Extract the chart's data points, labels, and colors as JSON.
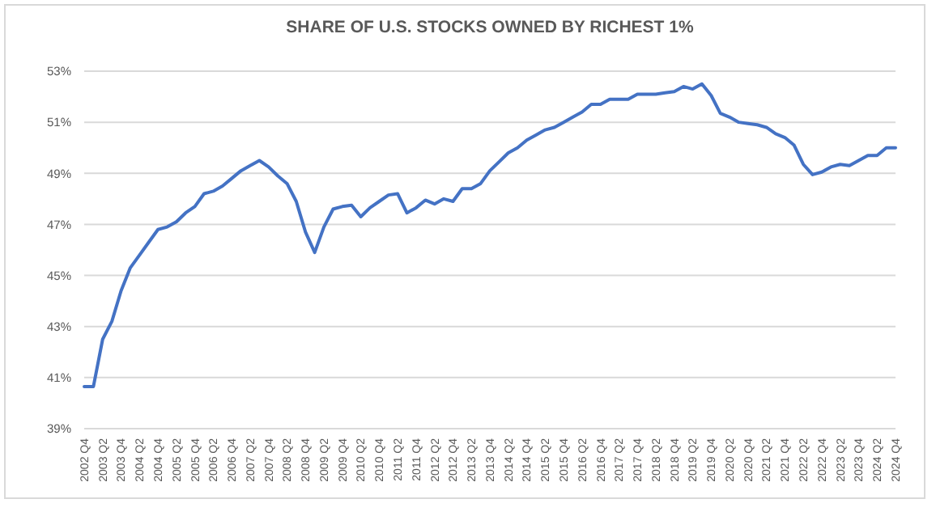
{
  "chart_data": {
    "type": "line",
    "title": "SHARE OF U.S. STOCKS OWNED BY RICHEST 1%",
    "categories": [
      "2002 Q4",
      null,
      "2003 Q2",
      null,
      "2003 Q4",
      null,
      "2004 Q2",
      null,
      "2004 Q4",
      null,
      "2005 Q2",
      null,
      "2005 Q4",
      null,
      "2006 Q2",
      null,
      "2006 Q4",
      null,
      "2007 Q2",
      null,
      "2007 Q4",
      null,
      "2008 Q2",
      null,
      "2008 Q4",
      null,
      "2009 Q2",
      null,
      "2009 Q4",
      null,
      "2010 Q2",
      null,
      "2010 Q4",
      null,
      "2011 Q2",
      null,
      "2011 Q4",
      null,
      "2012 Q2",
      null,
      "2012 Q4",
      null,
      "2013 Q2",
      null,
      "2013 Q4",
      null,
      "2014 Q2",
      null,
      "2014 Q4",
      null,
      "2015 Q2",
      null,
      "2015 Q4",
      null,
      "2016 Q2",
      null,
      "2016 Q4",
      null,
      "2017 Q2",
      null,
      "2017 Q4",
      null,
      "2018 Q2",
      null,
      "2018 Q4",
      null,
      "2019 Q2",
      null,
      "2019 Q4",
      null,
      "2020 Q2",
      null,
      "2020 Q4",
      null,
      "2021 Q2",
      null,
      "2021 Q4",
      null,
      "2022 Q2",
      null,
      "2022 Q4",
      null,
      "2023 Q2",
      null,
      "2023 Q4",
      null,
      "2024 Q2",
      null,
      "2024 Q4"
    ],
    "series": [
      {
        "color": "#4472c4",
        "values": [
          40.65,
          40.65,
          42.5,
          43.2,
          44.4,
          45.3,
          45.8,
          46.3,
          46.8,
          46.9,
          47.1,
          47.45,
          47.7,
          48.2,
          48.3,
          48.5,
          48.8,
          49.1,
          49.3,
          49.5,
          49.25,
          48.9,
          48.6,
          47.9,
          46.7,
          45.9,
          46.9,
          47.6,
          47.7,
          47.75,
          47.3,
          47.65,
          47.9,
          48.15,
          48.2,
          47.45,
          47.65,
          47.95,
          47.8,
          48.0,
          47.9,
          48.4,
          48.4,
          48.6,
          49.1,
          49.45,
          49.8,
          50.0,
          50.3,
          50.5,
          50.7,
          50.8,
          51.0,
          51.2,
          51.4,
          51.7,
          51.7,
          51.9,
          51.9,
          51.9,
          52.1,
          52.1,
          52.1,
          52.15,
          52.2,
          52.4,
          52.3,
          52.5,
          52.05,
          51.35,
          51.2,
          51.0,
          50.95,
          50.9,
          50.8,
          50.55,
          50.4,
          50.1,
          49.35,
          48.95,
          49.05,
          49.25,
          49.35,
          49.3,
          49.5,
          49.7,
          49.7,
          50.0,
          50.0
        ]
      }
    ],
    "ylim": [
      39,
      53
    ],
    "yticks": [
      {
        "value": 39,
        "label": "39%"
      },
      {
        "value": 41,
        "label": "41%"
      },
      {
        "value": 43,
        "label": "43%"
      },
      {
        "value": 45,
        "label": "45%"
      },
      {
        "value": 47,
        "label": "47%"
      },
      {
        "value": 49,
        "label": "49%"
      },
      {
        "value": 51,
        "label": "51%"
      },
      {
        "value": 53,
        "label": "53%"
      }
    ],
    "grid": "y",
    "marker": "none",
    "line_style": "solid"
  }
}
